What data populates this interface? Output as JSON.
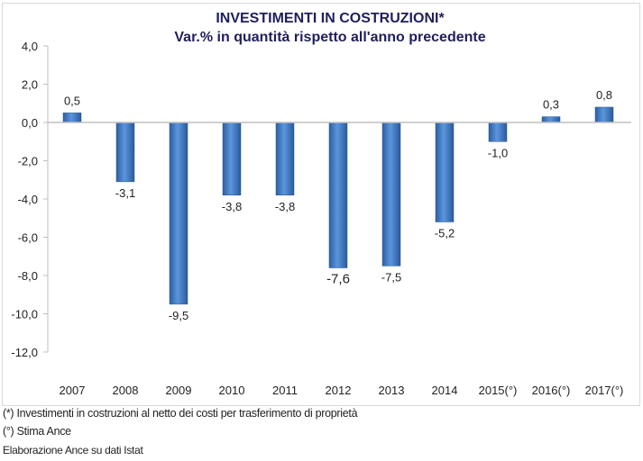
{
  "chart_data": {
    "type": "bar",
    "title": "INVESTIMENTI IN COSTRUZIONI*",
    "subtitle": "Var.% in quantità rispetto all'anno precedente",
    "categories": [
      "2007",
      "2008",
      "2009",
      "2010",
      "2011",
      "2012",
      "2013",
      "2014",
      "2015(°)",
      "2016(°)",
      "2017(°)"
    ],
    "values": [
      0.5,
      -3.1,
      -9.5,
      -3.8,
      -3.8,
      -7.6,
      -7.5,
      -5.2,
      -1.0,
      0.3,
      0.8
    ],
    "data_labels": [
      "0,5",
      "-3,1",
      "-9,5",
      "-3,8",
      "-3,8",
      "-7,6",
      "-7,5",
      "-5,2",
      "-1,0",
      "0,3",
      "0,8"
    ],
    "yticks": [
      "4,0",
      "2,0",
      "0,0",
      "-2,0",
      "-4,0",
      "-6,0",
      "-8,0",
      "-10,0",
      "-12,0"
    ],
    "ylim": [
      -12,
      4
    ],
    "grid": false,
    "bar_color": "#3f78c0",
    "title_color": "#1f1f5c"
  },
  "notes": [
    "(*) Investimenti in costruzioni al netto dei costi per trasferimento di proprietà",
    "(°) Stima Ance",
    "Elaborazione Ance su dati Istat"
  ]
}
